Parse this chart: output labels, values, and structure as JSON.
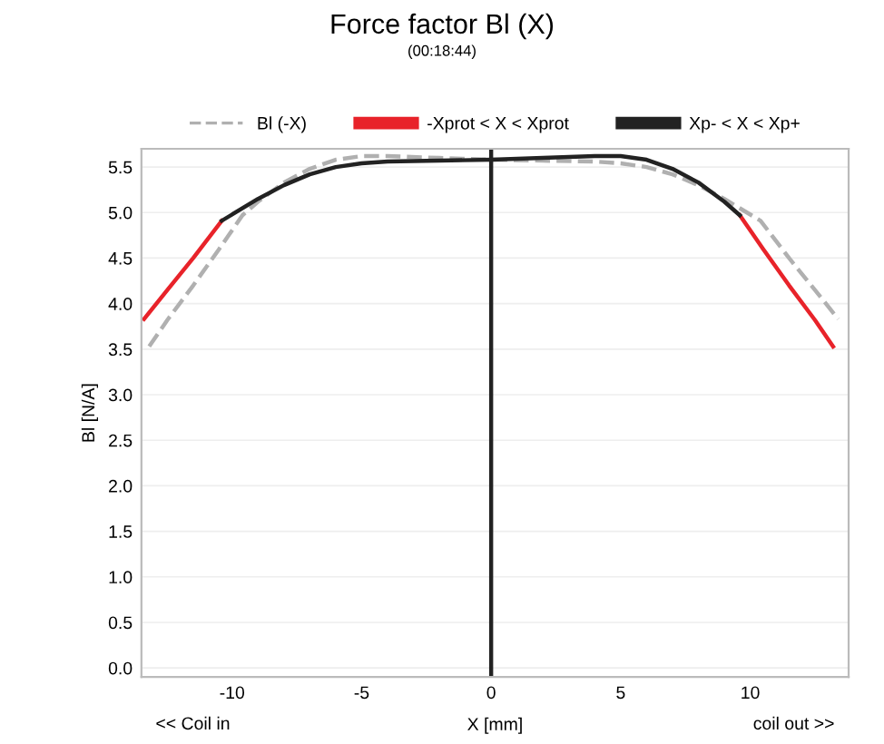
{
  "chart_data": {
    "type": "line",
    "title": "Force factor Bl (X)",
    "subtitle": "(00:18:44)",
    "xlabel": "X [mm]",
    "ylabel": "Bl [N/A]",
    "series": [
      {
        "name": "Bl (-X)",
        "color": "#b0b0b0",
        "line_style": "dashed",
        "x": [
          -13.2,
          -12.5,
          -11.5,
          -10.5,
          -9.6,
          -9,
          -8,
          -7,
          -6,
          -5,
          -4,
          -2,
          0,
          2,
          4,
          5,
          6,
          7,
          8,
          9,
          10.4,
          11.5,
          12.5,
          13.4
        ],
        "values": [
          3.53,
          3.82,
          4.2,
          4.6,
          4.97,
          5.12,
          5.33,
          5.48,
          5.58,
          5.62,
          5.62,
          5.6,
          5.58,
          5.57,
          5.56,
          5.54,
          5.5,
          5.42,
          5.3,
          5.15,
          4.91,
          4.5,
          4.15,
          3.83
        ]
      },
      {
        "name": "-Xprot < X < Xprot",
        "color": "#e8232a",
        "line_style": "solid",
        "x": [
          -13.4,
          -12.5,
          -11.5,
          -10.4,
          null,
          9.6,
          10.5,
          11.5,
          12.5,
          13.2
        ],
        "values": [
          3.83,
          4.15,
          4.5,
          4.91,
          null,
          4.97,
          4.6,
          4.2,
          3.82,
          3.53
        ]
      },
      {
        "name": "Xp- < X < Xp+",
        "color": "#222222",
        "line_style": "solid",
        "x": [
          -10.4,
          -9,
          -8,
          -7,
          -6,
          -5,
          -4,
          -2,
          0,
          2,
          4,
          5,
          6,
          7,
          8,
          9,
          9.6
        ],
        "values": [
          4.91,
          5.15,
          5.3,
          5.42,
          5.5,
          5.54,
          5.56,
          5.57,
          5.58,
          5.6,
          5.62,
          5.62,
          5.58,
          5.48,
          5.33,
          5.12,
          4.97
        ]
      }
    ],
    "xlim": [
      -13.5,
      13.8
    ],
    "xticks": [
      -10,
      -5,
      0,
      5,
      10
    ],
    "ylim": [
      -0.1,
      5.7
    ],
    "yticks": [
      {
        "value": 0,
        "label": "0.0"
      },
      0.5,
      {
        "value": 1,
        "label": "1.0"
      },
      1.5,
      {
        "value": 2,
        "label": "2.0"
      },
      2.5,
      {
        "value": 3,
        "label": "3.0"
      },
      3.5,
      {
        "value": 4,
        "label": "4.0"
      },
      4.5,
      {
        "value": 5,
        "label": "5.0"
      },
      5.5
    ],
    "ref_lines": [
      {
        "axis": "x",
        "value": 0,
        "color": "#222222",
        "line_style": "solid"
      }
    ],
    "annotations": [
      "<< Coil in",
      "coil out >>"
    ],
    "grid": "y",
    "legend": "top",
    "marker": "none"
  }
}
